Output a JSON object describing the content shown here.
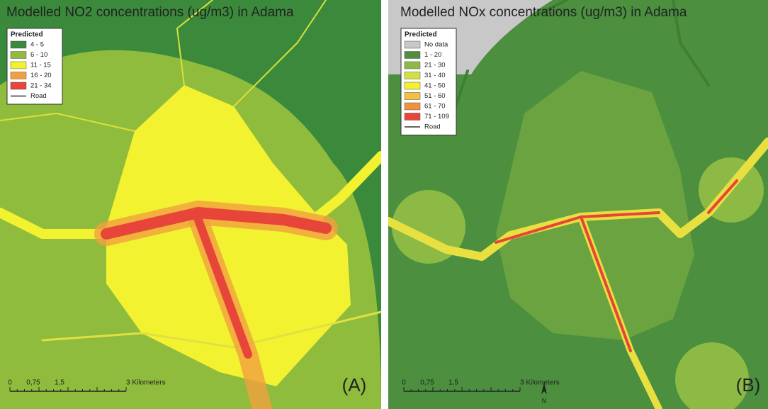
{
  "panels": [
    {
      "title": "Modelled NO2 concentrations (ug/m3) in Adama",
      "legend": {
        "title": "Predicted",
        "items": [
          {
            "label": "4 - 5",
            "color": "#3b8a3c"
          },
          {
            "label": "6 - 10",
            "color": "#8fbc3d"
          },
          {
            "label": "11 - 15",
            "color": "#f2f230"
          },
          {
            "label": "16 - 20",
            "color": "#f0a040"
          },
          {
            "label": "21 - 34",
            "color": "#e8453a"
          }
        ],
        "road": "Road"
      },
      "scale": [
        "0",
        "0,75",
        "1,5",
        "3 Kilometers"
      ],
      "label": "(A)"
    },
    {
      "title": "Modelled NOx concentrations (ug/m3) in Adama",
      "legend": {
        "title": "Predicted",
        "items": [
          {
            "label": "No data",
            "color": "#c8c8c8"
          },
          {
            "label": "1 - 20",
            "color": "#4b8f3f"
          },
          {
            "label": "21 - 30",
            "color": "#8dba45"
          },
          {
            "label": "31 - 40",
            "color": "#d4e040"
          },
          {
            "label": "41 - 50",
            "color": "#f2f230"
          },
          {
            "label": "51 - 60",
            "color": "#f5c040"
          },
          {
            "label": "61 - 70",
            "color": "#f09040"
          },
          {
            "label": "71 - 109",
            "color": "#e8453a"
          }
        ],
        "road": "Road"
      },
      "scale": [
        "0",
        "0,75",
        "1,5",
        "3 Kilometers"
      ],
      "label": "(B)"
    }
  ],
  "north": "N"
}
